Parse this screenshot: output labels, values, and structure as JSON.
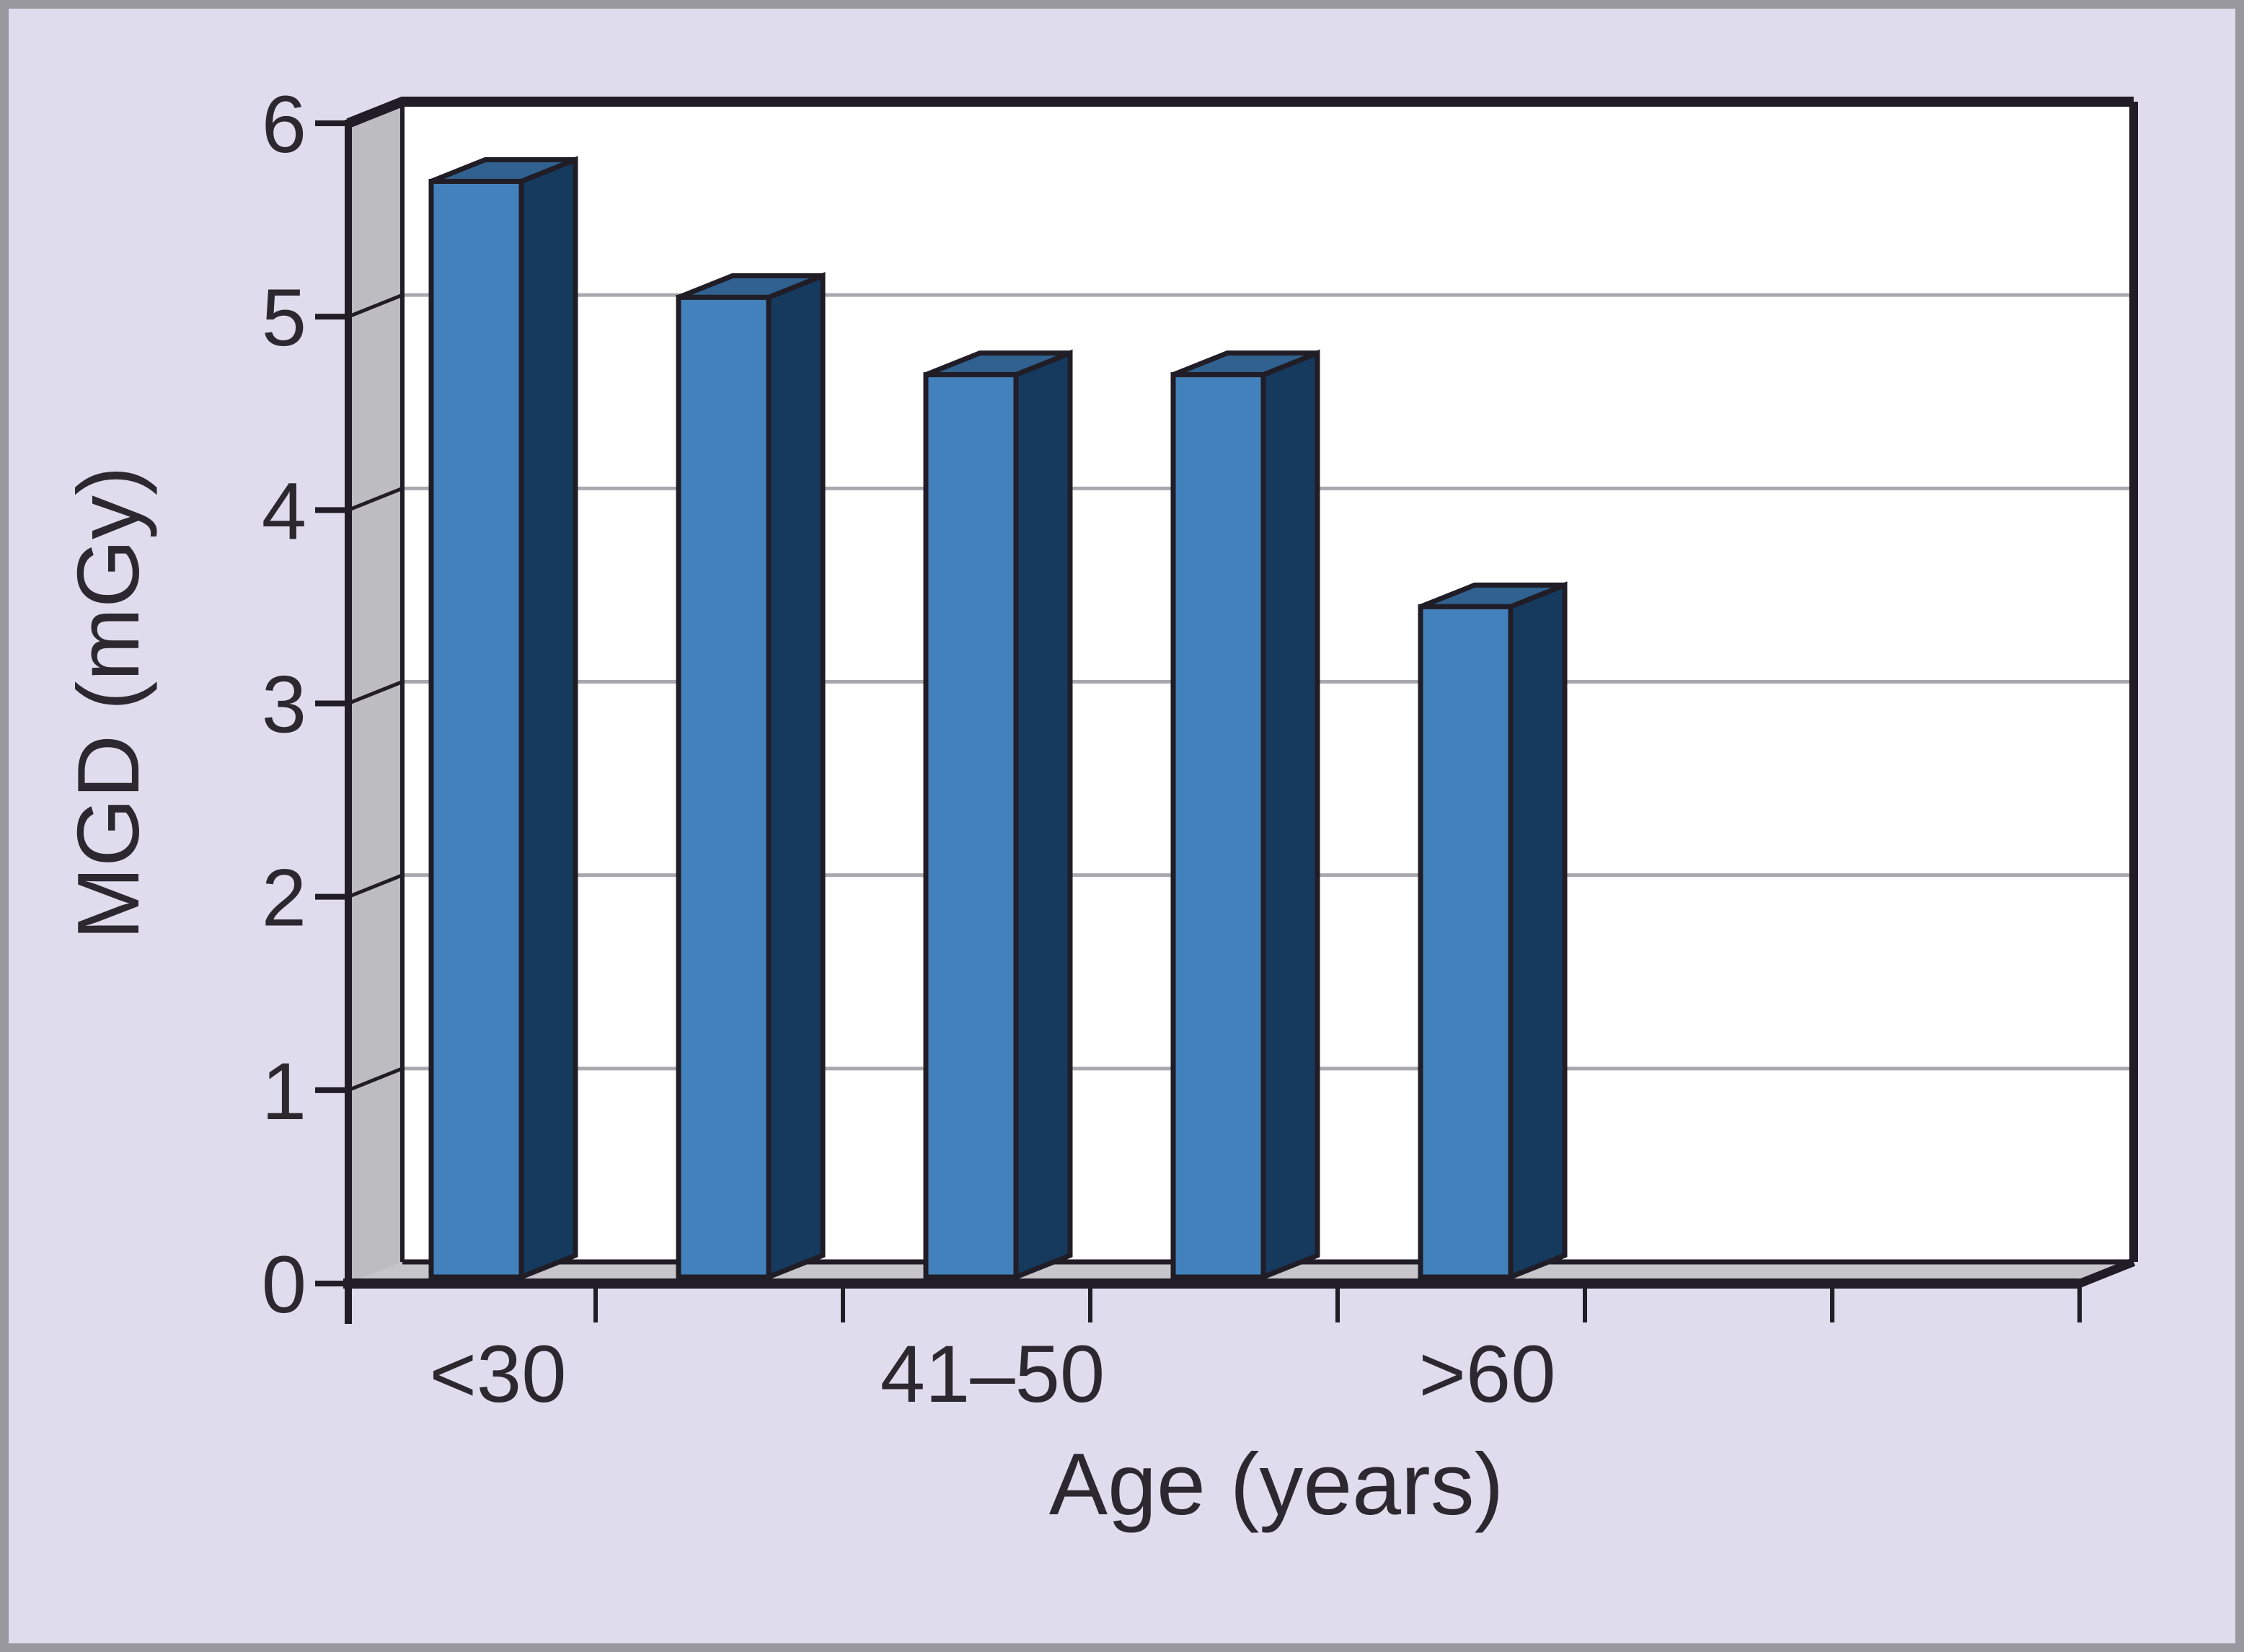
{
  "figure": {
    "background_color": "#dfdded",
    "frame_border_color": "#98989e"
  },
  "chart_data": {
    "type": "bar",
    "title": "",
    "xlabel": "Age (years)",
    "ylabel": "MGD (mGy)",
    "values": [
      5.7,
      5.1,
      4.7,
      4.7,
      3.5
    ],
    "num_category_slots": 7,
    "x_tick_labels": [
      "<30",
      "41–50",
      ">60"
    ],
    "x_tick_label_slots": [
      1,
      3,
      5
    ],
    "yticks": [
      "0",
      "1",
      "2",
      "3",
      "4",
      "5",
      "6"
    ],
    "ylim": [
      0,
      6
    ],
    "grid": true,
    "legend": false,
    "style": "pseudo-3d-columns",
    "colors": {
      "bar_front": "#4281bc",
      "bar_side": "#16395e",
      "bar_top": "#30618f",
      "outline": "#201d26",
      "back_wall": "#ffffff",
      "side_wall": "#bdbcc1",
      "floor": "#c6c5ca",
      "gridline": "#a9a8ae",
      "text": "#2b2830"
    }
  }
}
